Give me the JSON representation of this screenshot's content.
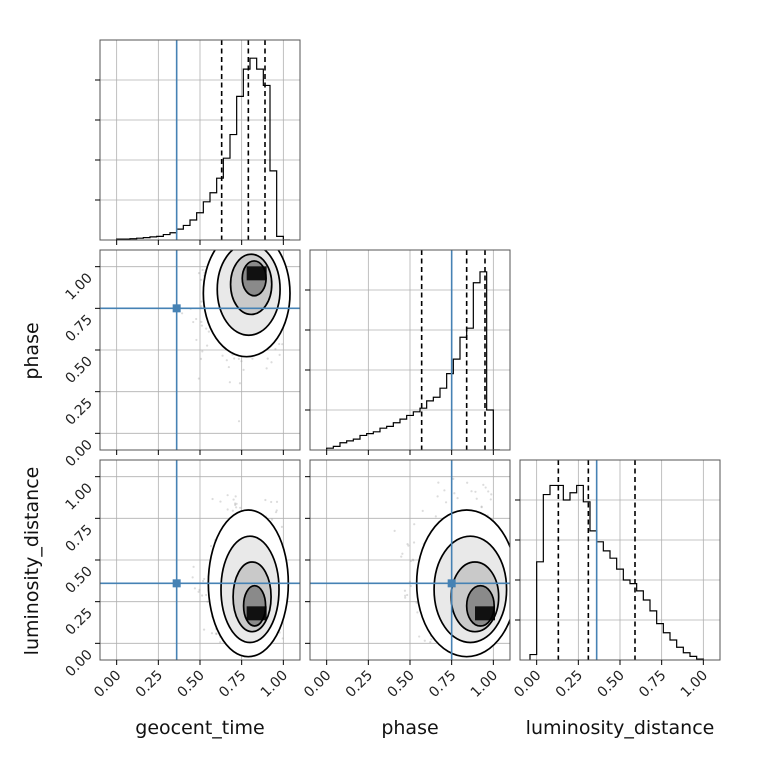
{
  "chart_data": {
    "type": "corner",
    "parameters": [
      "geocent_time",
      "phase",
      "luminosity_distance"
    ],
    "axis_range": [
      -0.1,
      1.1
    ],
    "ticks": [
      0.0,
      0.25,
      0.5,
      0.75,
      1.0
    ],
    "tick_labels": [
      "0.00",
      "0.25",
      "0.50",
      "0.75",
      "1.00"
    ],
    "grid": true,
    "truths": [
      0.36,
      0.75,
      0.36
    ],
    "truth_color": "#4682b4",
    "quantiles": [
      [
        0.63,
        0.79,
        0.89
      ],
      [
        0.57,
        0.84,
        0.95
      ],
      [
        0.13,
        0.31,
        0.59
      ]
    ],
    "histograms": [
      {
        "parameter": "geocent_time",
        "bin_edges": [
          0.0,
          0.04,
          0.08,
          0.12,
          0.16,
          0.2,
          0.24,
          0.28,
          0.32,
          0.36,
          0.4,
          0.44,
          0.48,
          0.52,
          0.56,
          0.6,
          0.64,
          0.68,
          0.72,
          0.76,
          0.8,
          0.84,
          0.88,
          0.92,
          0.96,
          1.0,
          1.04
        ],
        "counts": [
          0.005,
          0.005,
          0.007,
          0.01,
          0.013,
          0.017,
          0.02,
          0.03,
          0.04,
          0.06,
          0.08,
          0.11,
          0.15,
          0.21,
          0.26,
          0.34,
          0.45,
          0.58,
          0.79,
          0.94,
          1.0,
          0.94,
          0.85,
          0.38,
          0.02,
          0.0
        ],
        "ylim": [
          0,
          1.1
        ]
      },
      {
        "parameter": "phase",
        "bin_edges": [
          0.0,
          0.04,
          0.08,
          0.12,
          0.16,
          0.2,
          0.24,
          0.28,
          0.32,
          0.36,
          0.4,
          0.44,
          0.48,
          0.52,
          0.56,
          0.6,
          0.64,
          0.68,
          0.72,
          0.76,
          0.8,
          0.84,
          0.88,
          0.92,
          0.96,
          1.0,
          1.04
        ],
        "counts": [
          0.01,
          0.02,
          0.04,
          0.05,
          0.06,
          0.08,
          0.09,
          0.1,
          0.12,
          0.13,
          0.15,
          0.17,
          0.19,
          0.21,
          0.23,
          0.27,
          0.29,
          0.34,
          0.42,
          0.5,
          0.62,
          0.67,
          0.92,
          0.98,
          0.22,
          0.0
        ],
        "ylim": [
          0,
          1.1
        ]
      },
      {
        "parameter": "luminosity_distance",
        "bin_edges": [
          -0.04,
          0.0,
          0.04,
          0.08,
          0.12,
          0.16,
          0.2,
          0.24,
          0.28,
          0.32,
          0.36,
          0.4,
          0.44,
          0.48,
          0.52,
          0.56,
          0.6,
          0.64,
          0.68,
          0.72,
          0.76,
          0.8,
          0.84,
          0.88,
          0.92,
          0.96,
          1.0
        ],
        "counts": [
          0.03,
          0.54,
          0.91,
          0.96,
          0.96,
          0.88,
          0.92,
          0.96,
          0.87,
          0.71,
          0.65,
          0.6,
          0.56,
          0.5,
          0.44,
          0.42,
          0.38,
          0.33,
          0.27,
          0.2,
          0.15,
          0.11,
          0.07,
          0.04,
          0.02,
          0.005
        ],
        "ylim": [
          0,
          1.1
        ]
      }
    ],
    "density_panels": [
      {
        "x": "geocent_time",
        "y": "phase",
        "mean": [
          0.78,
          0.84
        ],
        "sd": [
          0.13,
          0.19
        ],
        "peak": [
          0.84,
          0.96
        ]
      },
      {
        "x": "geocent_time",
        "y": "luminosity_distance",
        "mean": [
          0.79,
          0.36
        ],
        "sd": [
          0.12,
          0.22
        ],
        "peak": [
          0.84,
          0.18
        ]
      },
      {
        "x": "phase",
        "y": "luminosity_distance",
        "mean": [
          0.84,
          0.36
        ],
        "sd": [
          0.15,
          0.22
        ],
        "peak": [
          0.95,
          0.18
        ]
      }
    ]
  }
}
